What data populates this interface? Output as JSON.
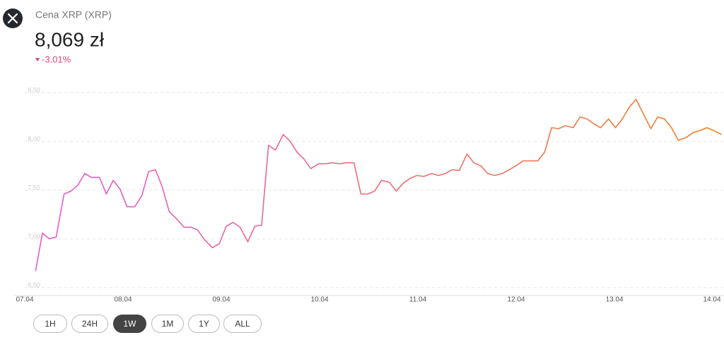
{
  "header": {
    "title": "Cena XRP (XRP)",
    "price": "8,069 zł",
    "change": "-3.01%"
  },
  "chart_data": {
    "type": "line",
    "gradient": [
      "#e55bd3",
      "#f4811f"
    ],
    "grid": true,
    "xlim": [
      0,
      7.1
    ],
    "xticks": [
      {
        "value": 0,
        "label": "07.04"
      },
      {
        "value": 1,
        "label": "08.04"
      },
      {
        "value": 2,
        "label": "09.04"
      },
      {
        "value": 3,
        "label": "10.04"
      },
      {
        "value": 4,
        "label": "11.04"
      },
      {
        "value": 5,
        "label": "12.04"
      },
      {
        "value": 6,
        "label": "13.04"
      },
      {
        "value": 7,
        "label": "14.04"
      }
    ],
    "ylim": [
      6.42,
      8.62
    ],
    "yticks": [
      {
        "value": 6.5,
        "label": "6,50"
      },
      {
        "value": 7,
        "label": "7,00"
      },
      {
        "value": 7.5,
        "label": "7,50"
      },
      {
        "value": 8,
        "label": "8,00"
      },
      {
        "value": 8.5,
        "label": "8,50"
      }
    ],
    "x": [
      0.11,
      0.18,
      0.25,
      0.32,
      0.4,
      0.47,
      0.54,
      0.61,
      0.68,
      0.76,
      0.83,
      0.9,
      0.97,
      1.04,
      1.12,
      1.19,
      1.26,
      1.33,
      1.4,
      1.47,
      1.55,
      1.62,
      1.69,
      1.76,
      1.83,
      1.91,
      1.98,
      2.05,
      2.12,
      2.19,
      2.27,
      2.34,
      2.41,
      2.48,
      2.55,
      2.63,
      2.7,
      2.77,
      2.84,
      2.91,
      2.99,
      3.06,
      3.13,
      3.2,
      3.27,
      3.35,
      3.42,
      3.49,
      3.56,
      3.63,
      3.71,
      3.78,
      3.85,
      3.92,
      3.99,
      4.06,
      4.14,
      4.21,
      4.28,
      4.35,
      4.42,
      4.5,
      4.57,
      4.64,
      4.71,
      4.78,
      4.86,
      4.93,
      5.0,
      5.07,
      5.14,
      5.22,
      5.29,
      5.36,
      5.43,
      5.5,
      5.58,
      5.65,
      5.72,
      5.79,
      5.86,
      5.94,
      6.01,
      6.08,
      6.15,
      6.22,
      6.29,
      6.37,
      6.44,
      6.51,
      6.58,
      6.65,
      6.73,
      6.8,
      6.87,
      6.94,
      7.01,
      7.09
    ],
    "values": [
      6.67,
      7.06,
      7.0,
      7.02,
      7.46,
      7.49,
      7.55,
      7.67,
      7.63,
      7.63,
      7.46,
      7.6,
      7.51,
      7.33,
      7.33,
      7.44,
      7.69,
      7.71,
      7.53,
      7.28,
      7.2,
      7.12,
      7.12,
      7.09,
      6.99,
      6.91,
      6.95,
      7.13,
      7.17,
      7.12,
      6.97,
      7.13,
      7.14,
      7.96,
      7.91,
      8.07,
      8.0,
      7.89,
      7.82,
      7.72,
      7.77,
      7.77,
      7.78,
      7.77,
      7.78,
      7.78,
      7.46,
      7.46,
      7.49,
      7.6,
      7.58,
      7.49,
      7.57,
      7.62,
      7.65,
      7.64,
      7.67,
      7.65,
      7.67,
      7.71,
      7.7,
      7.87,
      7.78,
      7.75,
      7.67,
      7.65,
      7.67,
      7.71,
      7.75,
      7.8,
      7.8,
      7.8,
      7.89,
      8.14,
      8.13,
      8.16,
      8.14,
      8.25,
      8.23,
      8.18,
      8.14,
      8.23,
      8.14,
      8.23,
      8.35,
      8.43,
      8.29,
      8.13,
      8.25,
      8.23,
      8.14,
      8.01,
      8.04,
      8.09,
      8.11,
      8.14,
      8.11,
      8.07
    ]
  },
  "range_buttons": [
    "1H",
    "24H",
    "1W",
    "1M",
    "1Y",
    "ALL"
  ]
}
